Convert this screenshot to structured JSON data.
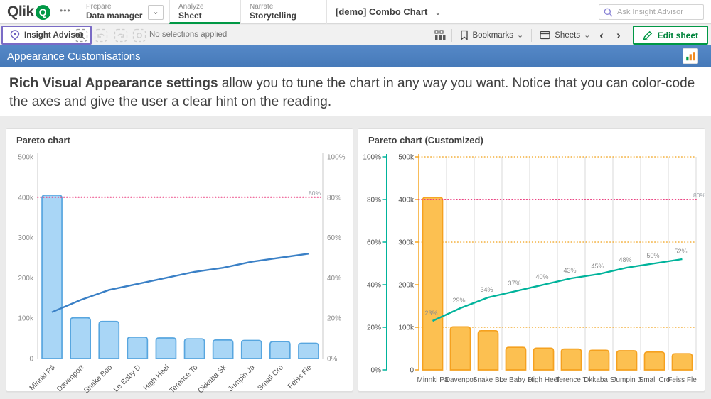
{
  "topbar": {
    "logo": "Qlik",
    "logo_mark": "Q",
    "more_menu": "•••",
    "tabs": [
      {
        "section": "Prepare",
        "label": "Data manager"
      },
      {
        "section": "Analyze",
        "label": "Sheet"
      },
      {
        "section": "Narrate",
        "label": "Storytelling"
      }
    ],
    "app_title": "[demo] Combo Chart",
    "search_placeholder": "Ask Insight Advisor"
  },
  "toolbar": {
    "insight_advisor_label": "Insight Advisor",
    "selections_status": "No selections applied",
    "bookmarks_label": "Bookmarks",
    "sheets_label": "Sheets",
    "edit_sheet_label": "Edit sheet",
    "prev_icon": "‹",
    "next_icon": "›",
    "chevron_down": "⌄"
  },
  "sheet": {
    "title": "Appearance Customisations",
    "description_bold": "Rich Visual Appearance settings",
    "description_rest": " allow you to tune the chart in any way you want. Notice that you can color-code the axes and give the user a clear hint on the reading."
  },
  "chart_data": [
    {
      "type": "combo",
      "variant": "plain",
      "title": "Pareto chart",
      "categories": [
        "Minnki Pä",
        "Davenport",
        "Snake Boo",
        "Le Baby D",
        "High Heel",
        "Terence To",
        "Okkaba Sk",
        "Jumpin Ja",
        "Small Cro",
        "Feiss Fle"
      ],
      "bar_values": [
        405000,
        101000,
        92000,
        53000,
        51000,
        49000,
        46000,
        45000,
        42000,
        38000
      ],
      "line_percent": [
        23,
        29,
        34,
        37,
        40,
        43,
        45,
        48,
        50,
        52
      ],
      "show_line_labels": false,
      "value_axis": {
        "max": 500000,
        "tick_labels": [
          "0",
          "100k",
          "200k",
          "300k",
          "400k",
          "500k"
        ],
        "side": "left"
      },
      "percent_axis": {
        "max": 100,
        "tick_labels": [
          "0%",
          "20%",
          "40%",
          "60%",
          "80%",
          "100%"
        ],
        "side": "right"
      },
      "reference_line": {
        "percent": 80,
        "label": "80%"
      },
      "x_labels_rotated": true,
      "column_gridlines": false,
      "value_gridlines_at": [],
      "colors": {
        "bar_fill": "#a9d6f6",
        "bar_stroke": "#58a6df",
        "line": "#3a80c6",
        "reference": "#ea3d7e",
        "axis_line": "#c9c9c9",
        "tick_text": "#8c8c8c",
        "category_text": "#595959",
        "ref_label": "#9aa0a6"
      }
    },
    {
      "type": "combo",
      "variant": "customized",
      "title": "Pareto chart (Customized)",
      "categories": [
        "Minnki Pä",
        "Davenpor",
        "Snake Bo",
        "Le Baby D",
        "High Heel",
        "Terence T",
        "Okkaba S",
        "Jumpin J",
        "Small Cro",
        "Feiss Fle"
      ],
      "bar_values": [
        405000,
        101000,
        92000,
        53000,
        51000,
        49000,
        46000,
        45000,
        42000,
        38000
      ],
      "line_percent": [
        23,
        29,
        34,
        37,
        40,
        43,
        45,
        48,
        50,
        52
      ],
      "show_line_labels": true,
      "value_axis": {
        "max": 500000,
        "tick_labels": [
          "0",
          "100k",
          "200k",
          "300k",
          "400k",
          "500k"
        ],
        "side": "left-inner"
      },
      "percent_axis": {
        "max": 100,
        "tick_labels": [
          "0%",
          "20%",
          "40%",
          "60%",
          "80%",
          "100%"
        ],
        "side": "left-outer"
      },
      "reference_line": {
        "percent": 80,
        "label": "80%"
      },
      "x_labels_rotated": false,
      "column_gridlines": true,
      "value_gridlines_at": [
        100000,
        300000,
        500000
      ],
      "colors": {
        "bar_fill": "#fcc051",
        "bar_stroke": "#f5a11f",
        "line": "#00b39b",
        "reference": "#ea3d7e",
        "percent_axis": "#00b39b",
        "value_axis": "#f5a623",
        "tick_text": "#4d4d4d",
        "category_text": "#595959",
        "grid_vertical": "#d9d9d9",
        "value_grid": "#f3ae38",
        "ref_label": "#9aa0a6",
        "line_label": "#8c8c8c"
      }
    }
  ]
}
